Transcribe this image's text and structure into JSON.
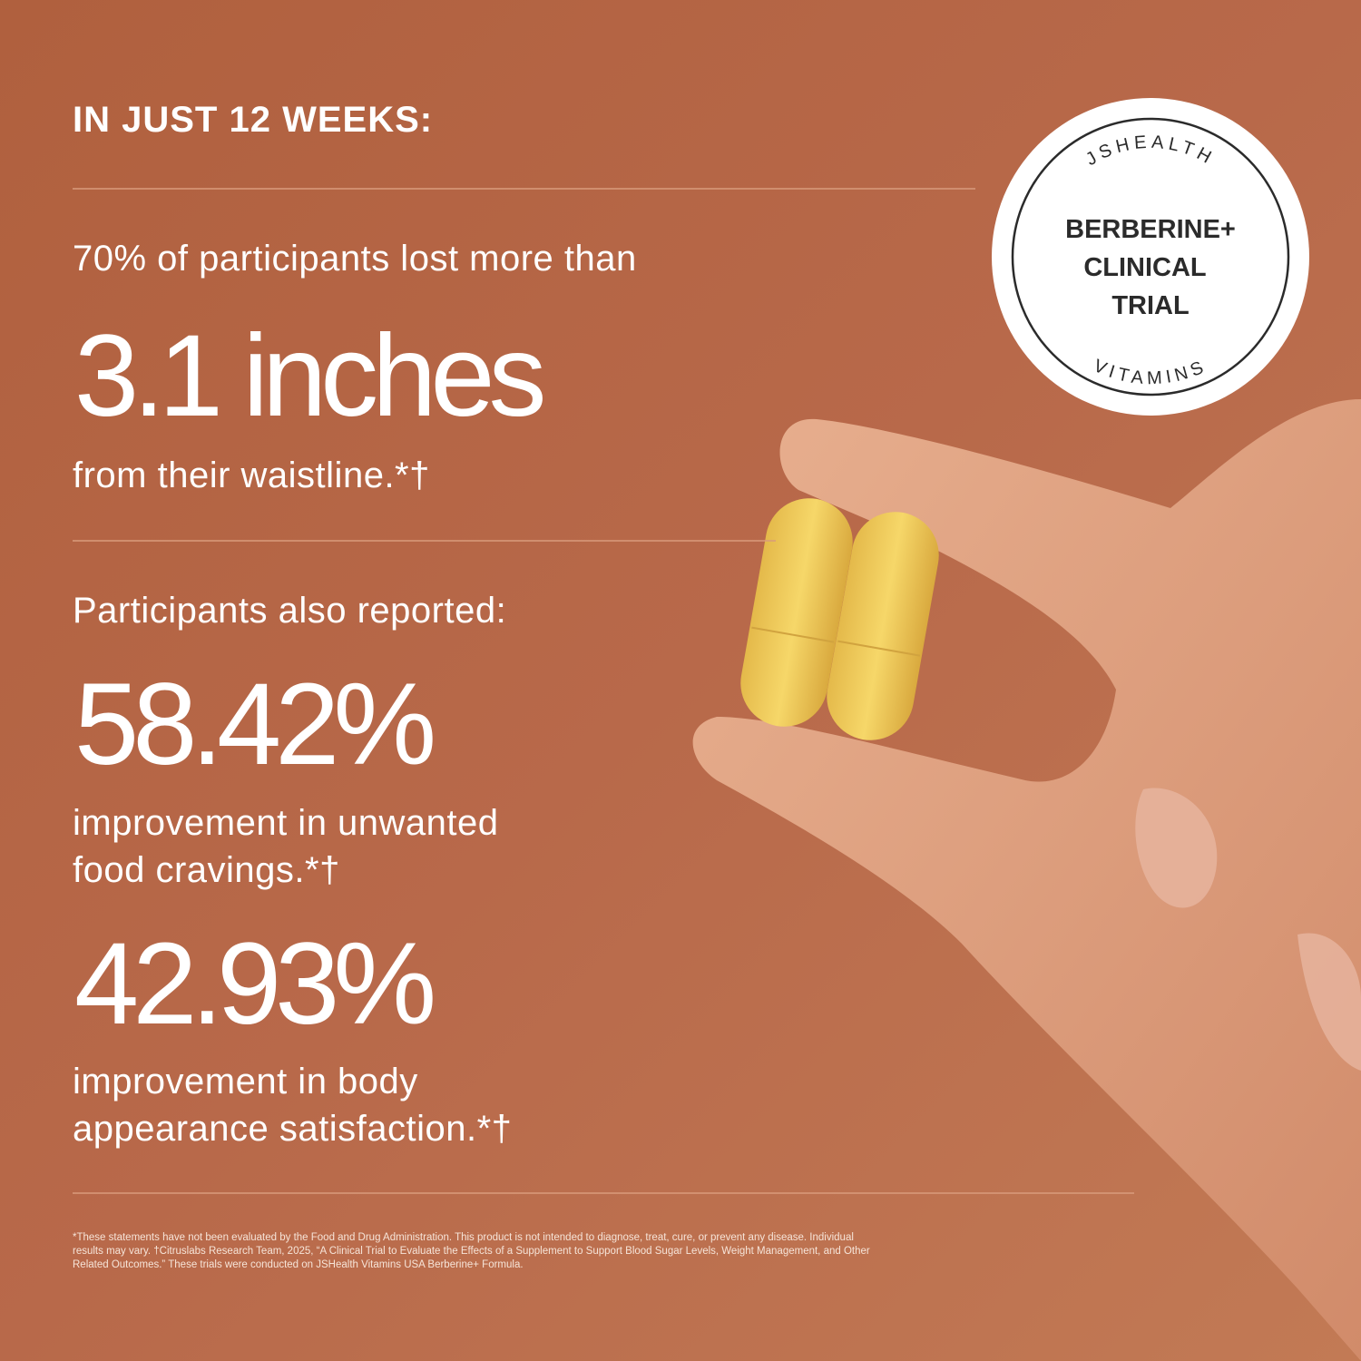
{
  "header": {
    "title": "IN JUST 12 WEEKS:"
  },
  "badge": {
    "top_arc": "JSHEALTH",
    "lines": [
      "BERBERINE+",
      "CLINICAL",
      "TRIAL"
    ],
    "bottom_arc": "VITAMINS"
  },
  "primary": {
    "intro": "70% of participants lost more than",
    "figure": "3.1 inches",
    "caption": "from their waistline.*†"
  },
  "secondary": {
    "heading": "Participants also reported:",
    "stats": [
      {
        "figure": "58.42%",
        "caption": [
          "improvement in unwanted",
          "food cravings.*†"
        ]
      },
      {
        "figure": "42.93%",
        "caption": [
          "improvement in body",
          "appearance satisfaction.*†"
        ]
      }
    ]
  },
  "footnote": [
    "*These statements have not been evaluated by the Food and Drug Administration. This product is not intended to diagnose, treat, cure, or prevent any disease. Individual",
    "results may vary. †Citruslabs Research Team, 2025, “A Clinical Trial to Evaluate the Effects of a Supplement to Support Blood Sugar Levels, Weight Management, and Other",
    "Related Outcomes.” These trials were conducted on JSHealth Vitamins USA Berberine+ Formula."
  ]
}
